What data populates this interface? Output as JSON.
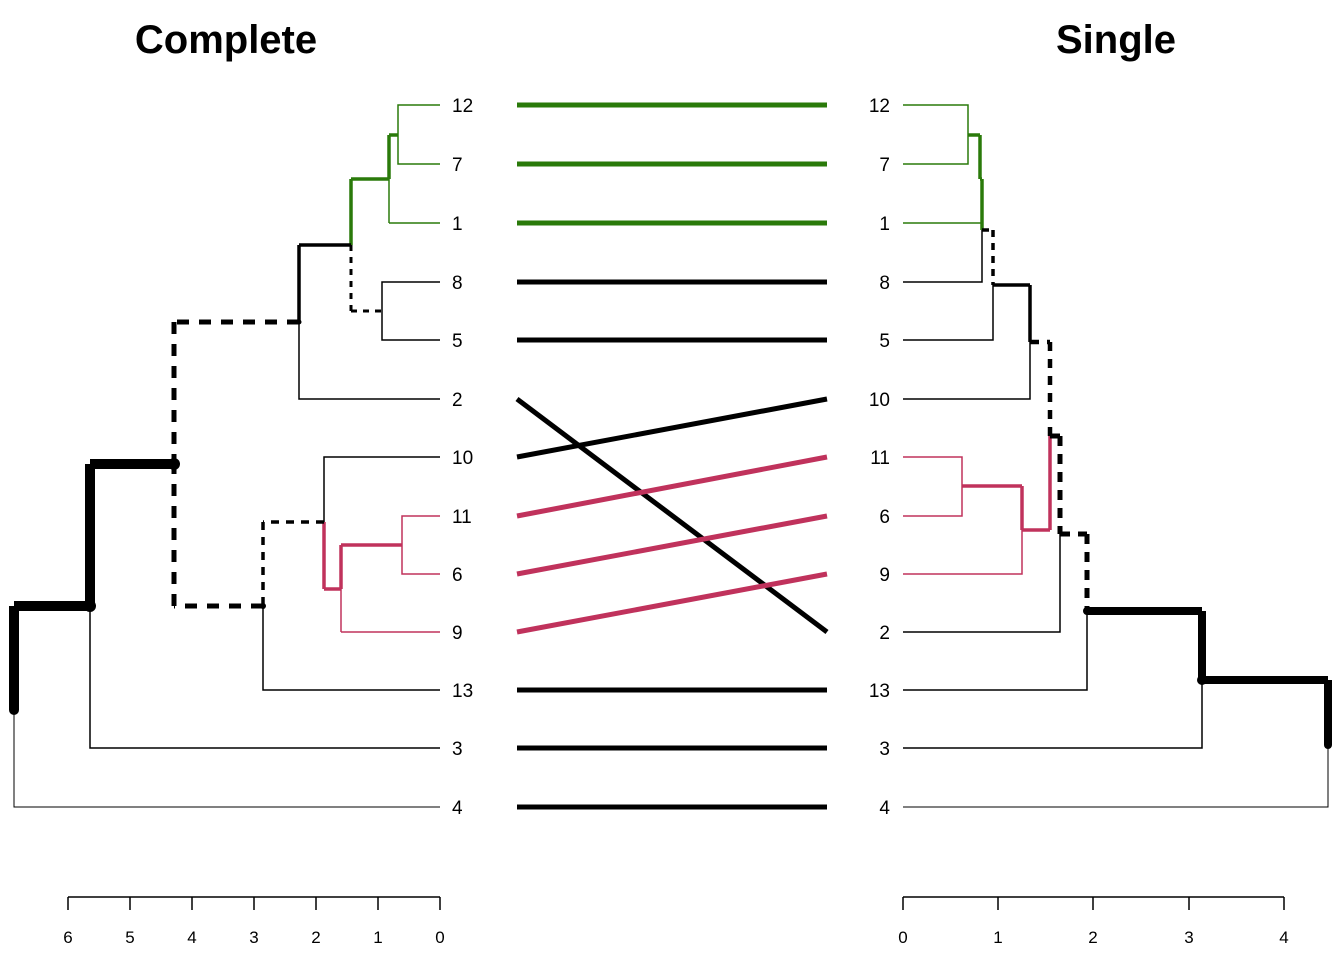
{
  "titles": {
    "left": "Complete",
    "right": "Single"
  },
  "leaves": {
    "left": [
      "12",
      "7",
      "1",
      "8",
      "5",
      "2",
      "10",
      "11",
      "6",
      "9",
      "13",
      "3",
      "4"
    ],
    "right": [
      "12",
      "7",
      "1",
      "8",
      "5",
      "10",
      "11",
      "6",
      "9",
      "2",
      "13",
      "3",
      "4"
    ]
  },
  "axes": {
    "left": {
      "ticks": [
        "6",
        "5",
        "4",
        "3",
        "2",
        "1",
        "0"
      ],
      "range": [
        6,
        0
      ]
    },
    "right": {
      "ticks": [
        "0",
        "1",
        "2",
        "3",
        "4"
      ],
      "range": [
        0,
        4
      ]
    }
  },
  "colors": {
    "green": "#2a7a0a",
    "pink": "#c0325c",
    "black": "#000000"
  }
}
